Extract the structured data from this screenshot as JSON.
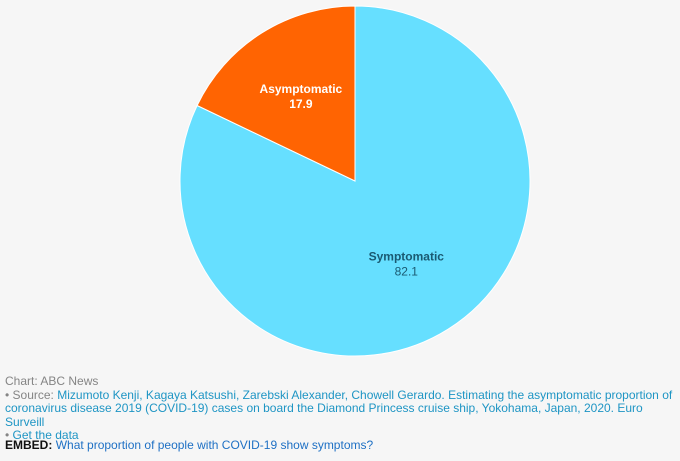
{
  "chart_data": {
    "type": "pie",
    "categories": [
      "Symptomatic",
      "Asymptomatic"
    ],
    "values": [
      82.1,
      17.9
    ],
    "colors": [
      "#66dfff",
      "#ff6402"
    ],
    "label_colors": [
      "#1a5a72",
      "#ffffff"
    ],
    "title": "",
    "start_angle": "12 o'clock",
    "direction": "clockwise"
  },
  "footer": {
    "credit": "Chart: ABC News",
    "source_prefix": "• Source: ",
    "source_text": "Mizumoto Kenji, Kagaya Katsushi, Zarebski Alexander, Chowell Gerardo. Estimating the asymptomatic proportion of coronavirus disease 2019 (COVID-19) cases on board the Diamond Princess cruise ship, Yokohama, Japan, 2020. Euro Surveill",
    "getdata_prefix": "• ",
    "getdata_text": "Get the data"
  },
  "embed": {
    "label": "EMBED:",
    "link_text": "What proportion of people with COVID-19 show symptoms?"
  }
}
